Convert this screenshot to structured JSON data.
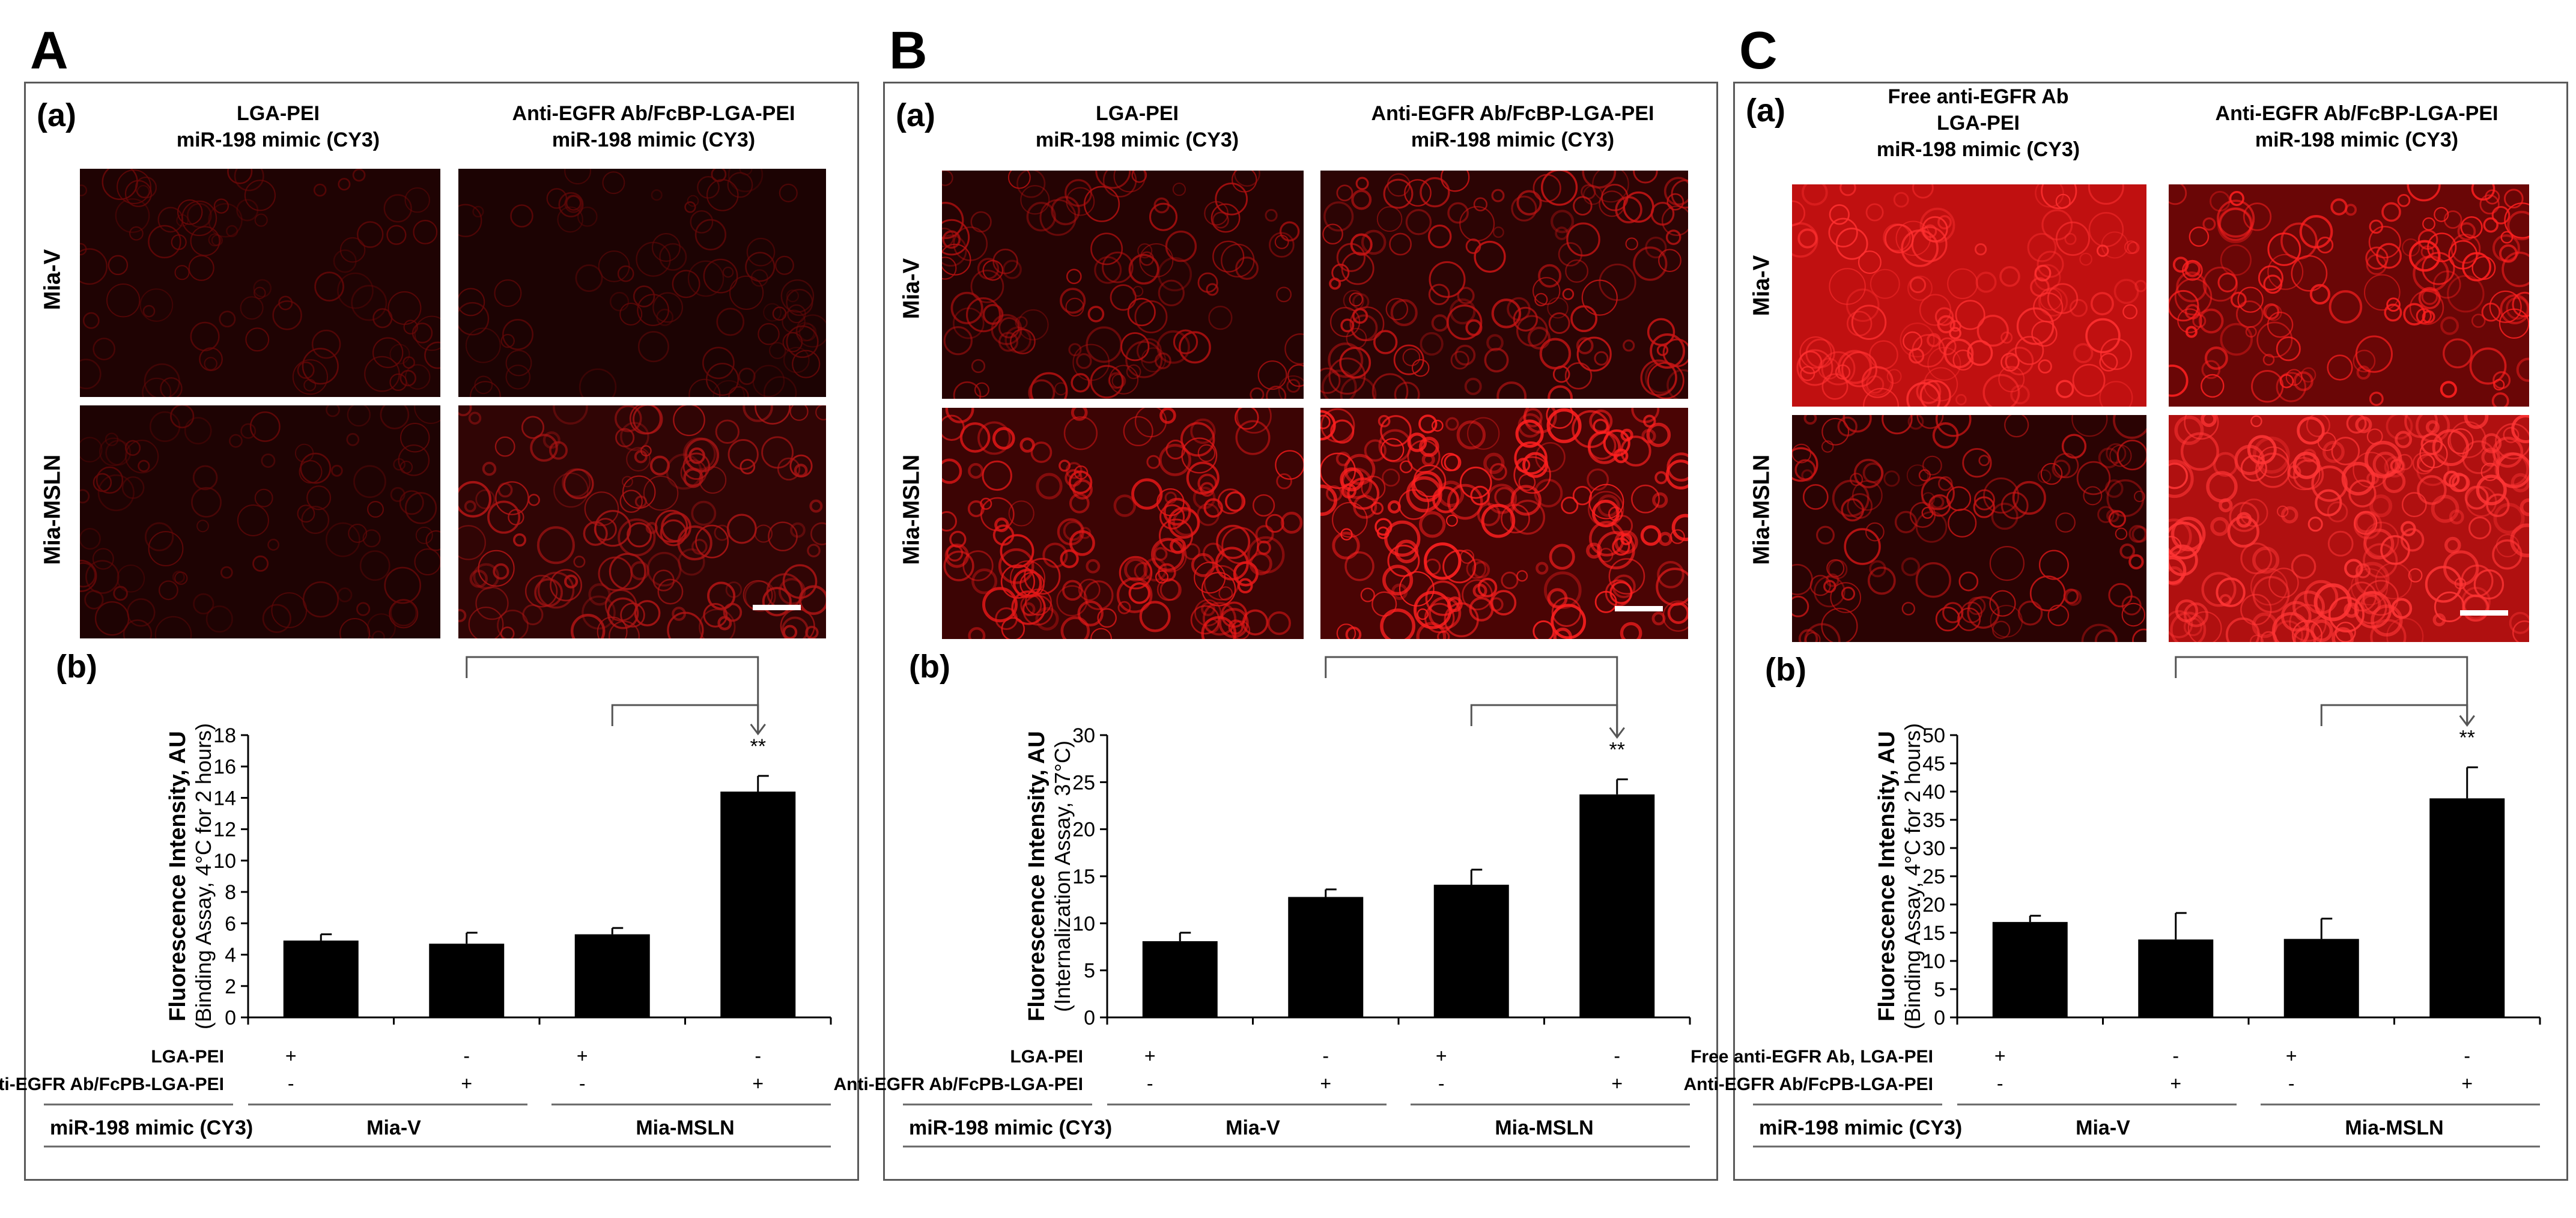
{
  "figure": {
    "panels": [
      {
        "letter": "A",
        "image_label": "(a)",
        "chart_label": "(b)",
        "column_titles": [
          {
            "line1": "",
            "line2": "LGA-PEI",
            "line3": "miR-198 mimic (CY3)"
          },
          {
            "line1": "",
            "line2": "Anti-EGFR Ab/FcBP-LGA-PEI",
            "line3": "miR-198 mimic (CY3)"
          }
        ],
        "row_labels": [
          "Mia-V",
          "Mia-MSLN"
        ],
        "images": [
          {
            "tone": "#1f0303",
            "dots": "#6a0808",
            "density": 0.15
          },
          {
            "tone": "#1c0303",
            "dots": "#640808",
            "density": 0.15
          },
          {
            "tone": "#1e0303",
            "dots": "#640808",
            "density": 0.18
          },
          {
            "tone": "#300505",
            "dots": "#b01515",
            "density": 0.5
          }
        ]
      },
      {
        "letter": "B",
        "image_label": "(a)",
        "chart_label": "(b)",
        "column_titles": [
          {
            "line1": "",
            "line2": "LGA-PEI",
            "line3": "miR-198 mimic (CY3)"
          },
          {
            "line1": "",
            "line2": "Anti-EGFR Ab/FcBP-LGA-PEI",
            "line3": "miR-198 mimic (CY3)"
          }
        ],
        "row_labels": [
          "Mia-V",
          "Mia-MSLN"
        ],
        "images": [
          {
            "tone": "#250303",
            "dots": "#b01010",
            "density": 0.35
          },
          {
            "tone": "#2c0404",
            "dots": "#c81515",
            "density": 0.45
          },
          {
            "tone": "#3c0404",
            "dots": "#e41818",
            "density": 0.6
          },
          {
            "tone": "#4a0404",
            "dots": "#ff2020",
            "density": 0.75
          }
        ]
      },
      {
        "letter": "C",
        "image_label": "(a)",
        "chart_label": "(b)",
        "column_titles": [
          {
            "line1": "Free anti-EGFR Ab",
            "line2": "LGA-PEI",
            "line3": "miR-198 mimic (CY3)"
          },
          {
            "line1": "",
            "line2": "Anti-EGFR Ab/FcBP-LGA-PEI",
            "line3": "miR-198 mimic (CY3)"
          }
        ],
        "row_labels": [
          "Mia-V",
          "Mia-MSLN"
        ],
        "images": [
          {
            "tone": "#c01010",
            "dots": "#ff3030",
            "density": 0.4
          },
          {
            "tone": "#6a0606",
            "dots": "#ff2020",
            "density": 0.45
          },
          {
            "tone": "#2a0303",
            "dots": "#c81515",
            "density": 0.4
          },
          {
            "tone": "#b01010",
            "dots": "#ff3535",
            "density": 0.8
          }
        ]
      }
    ]
  },
  "chart_data": [
    {
      "type": "bar",
      "categories": [
        "1",
        "2",
        "3",
        "4"
      ],
      "values": [
        4.9,
        4.7,
        5.3,
        14.4
      ],
      "errors": [
        0.4,
        0.7,
        0.4,
        1.0
      ],
      "ylabel": "Fluorescence Intensity, AU",
      "ylabel_sub": "(Binding Assay, 4°C for 2 hours)",
      "ylim": [
        0,
        18
      ],
      "yticks": [
        "0",
        "2",
        "4",
        "6",
        "8",
        "10",
        "12",
        "14",
        "16",
        "18"
      ],
      "significance": "**",
      "condition_rows": [
        {
          "label": "LGA-PEI",
          "marks": [
            "+",
            "-",
            "+",
            "-"
          ]
        },
        {
          "label": "Anti-EGFR Ab/FcPB-LGA-PEI",
          "marks": [
            "-",
            "+",
            "-",
            "+"
          ]
        }
      ],
      "footer": {
        "label": "miR-198 mimic (CY3)",
        "groups": [
          "Mia-V",
          "Mia-MSLN"
        ]
      },
      "bar_color": "#000000"
    },
    {
      "type": "bar",
      "categories": [
        "1",
        "2",
        "3",
        "4"
      ],
      "values": [
        8.1,
        12.8,
        14.1,
        23.7
      ],
      "errors": [
        0.9,
        0.8,
        1.6,
        1.6
      ],
      "ylabel": "Fluorescence Intensity, AU",
      "ylabel_sub": "(Internalization Assay, 37°C)",
      "ylim": [
        0,
        30
      ],
      "yticks": [
        "0",
        "5",
        "10",
        "15",
        "20",
        "25",
        "30"
      ],
      "significance": "**",
      "condition_rows": [
        {
          "label": "LGA-PEI",
          "marks": [
            "+",
            "-",
            "+",
            "-"
          ]
        },
        {
          "label": "Anti-EGFR Ab/FcPB-LGA-PEI",
          "marks": [
            "-",
            "+",
            "-",
            "+"
          ]
        }
      ],
      "footer": {
        "label": "miR-198 mimic (CY3)",
        "groups": [
          "Mia-V",
          "Mia-MSLN"
        ]
      },
      "bar_color": "#000000"
    },
    {
      "type": "bar",
      "categories": [
        "1",
        "2",
        "3",
        "4"
      ],
      "values": [
        16.9,
        13.8,
        13.9,
        38.8
      ],
      "errors": [
        1.1,
        4.7,
        3.6,
        5.5
      ],
      "ylabel": "Fluorescence Intensity, AU",
      "ylabel_sub": "(Binding Assay, 4°C for 2 hours)",
      "ylim": [
        0,
        50
      ],
      "yticks": [
        "0",
        "5",
        "10",
        "15",
        "20",
        "25",
        "30",
        "35",
        "40",
        "45",
        "50"
      ],
      "significance": "**",
      "condition_rows": [
        {
          "label": "Free anti-EGFR Ab, LGA-PEI",
          "marks": [
            "+",
            "-",
            "+",
            "-"
          ]
        },
        {
          "label": "Anti-EGFR Ab/FcPB-LGA-PEI",
          "marks": [
            "-",
            "+",
            "-",
            "+"
          ]
        }
      ],
      "footer": {
        "label": "miR-198 mimic (CY3)",
        "groups": [
          "Mia-V",
          "Mia-MSLN"
        ]
      },
      "bar_color": "#000000"
    }
  ]
}
